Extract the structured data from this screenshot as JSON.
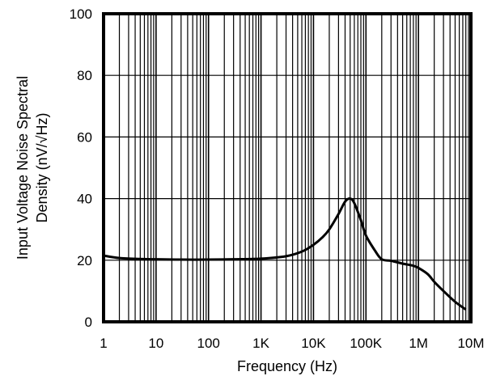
{
  "chart_data": {
    "type": "line",
    "xlabel": "Frequency (Hz)",
    "ylabel": [
      "Input Voltage Noise Spectral",
      "Density (nV/√Hz)"
    ],
    "x_scale": "log",
    "xlim": [
      1,
      10000000
    ],
    "ylim": [
      0,
      100
    ],
    "x_ticks": [
      {
        "value": 1,
        "label": "1"
      },
      {
        "value": 10,
        "label": "10"
      },
      {
        "value": 100,
        "label": "100"
      },
      {
        "value": 1000,
        "label": "1K"
      },
      {
        "value": 10000,
        "label": "10K"
      },
      {
        "value": 100000,
        "label": "100K"
      },
      {
        "value": 1000000,
        "label": "1M"
      },
      {
        "value": 10000000,
        "label": "10M"
      }
    ],
    "y_ticks": [
      {
        "value": 0,
        "label": "0"
      },
      {
        "value": 20,
        "label": "20"
      },
      {
        "value": 40,
        "label": "40"
      },
      {
        "value": 60,
        "label": "60"
      },
      {
        "value": 80,
        "label": "80"
      },
      {
        "value": 100,
        "label": "100"
      }
    ],
    "grid": true,
    "series": [
      {
        "color": "#000000",
        "x": [
          1,
          2,
          5,
          10,
          30,
          100,
          300,
          1000,
          3000,
          6000,
          10000,
          15000,
          20000,
          30000,
          40000,
          50000,
          60000,
          80000,
          100000,
          150000,
          200000,
          300000,
          500000,
          800000,
          1000000,
          1500000,
          2000000,
          3000000,
          5000000,
          8000000
        ],
        "y": [
          21.5,
          20.7,
          20.4,
          20.3,
          20.2,
          20.2,
          20.3,
          20.5,
          21.3,
          22.8,
          25,
          27.5,
          30,
          35,
          39,
          40,
          38.5,
          33,
          28,
          23,
          20.3,
          19.8,
          18.9,
          18.2,
          17.5,
          15.5,
          13,
          10,
          6.5,
          4
        ]
      }
    ]
  }
}
